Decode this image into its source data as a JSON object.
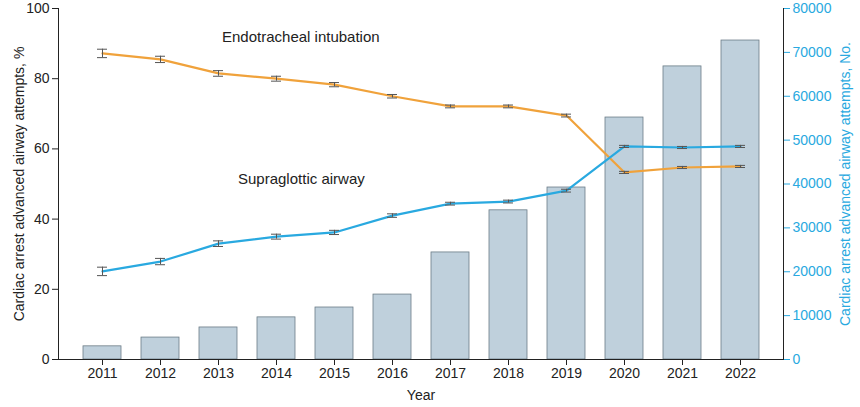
{
  "chart_data": {
    "type": "bar",
    "x_label": "Year",
    "y_label": "Cardiac arrest advanced airway attempts, %",
    "y2_label": "Cardiac arrest advanced airway attempts, No.",
    "categories": [
      "2011",
      "2012",
      "2013",
      "2014",
      "2015",
      "2016",
      "2017",
      "2018",
      "2019",
      "2020",
      "2021",
      "2022"
    ],
    "ylim": [
      0,
      100
    ],
    "yticks": [
      0,
      20,
      40,
      60,
      80,
      100
    ],
    "y2lim": [
      0,
      80000
    ],
    "y2ticks": [
      0,
      10000,
      20000,
      30000,
      40000,
      50000,
      60000,
      70000,
      80000
    ],
    "series": [
      {
        "type": "bar",
        "axis": "y2",
        "color": "#bfd0dc",
        "values": [
          3000,
          5000,
          7300,
          9600,
          11850,
          14800,
          24400,
          34000,
          39200,
          55150,
          66800,
          72700
        ]
      },
      {
        "name": "Endotracheal intubation",
        "type": "line",
        "axis": "y",
        "color": "#f0a23b",
        "values": [
          87.2,
          85.5,
          81.5,
          80.0,
          78.3,
          75.0,
          72.1,
          72.1,
          69.5,
          53.3,
          54.7,
          55.0
        ],
        "error": [
          1.2,
          0.9,
          0.8,
          0.7,
          0.6,
          0.5,
          0.4,
          0.4,
          0.4,
          0.3,
          0.3,
          0.3
        ]
      },
      {
        "name": "Supraglottic airway",
        "type": "line",
        "axis": "y",
        "color": "#29a9e0",
        "values": [
          25.1,
          27.9,
          33.0,
          35.0,
          36.2,
          41.0,
          44.4,
          45.0,
          48.1,
          60.7,
          60.4,
          60.7
        ],
        "error": [
          1.2,
          0.9,
          0.8,
          0.7,
          0.6,
          0.5,
          0.4,
          0.4,
          0.4,
          0.3,
          0.3,
          0.3
        ]
      }
    ]
  }
}
